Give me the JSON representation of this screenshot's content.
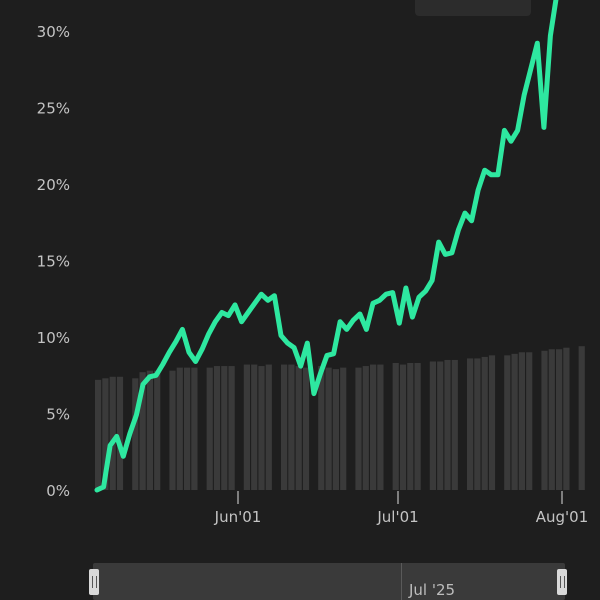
{
  "chart_data": {
    "type": "line",
    "x_ticks": [
      "Jun'01",
      "Jul'01",
      "Aug'01"
    ],
    "y_ticks": [
      "0%",
      "5%",
      "10%",
      "15%",
      "20%",
      "25%",
      "30%"
    ],
    "ylim": [
      0,
      30
    ],
    "series": [
      {
        "values": [
          0,
          0.2,
          2.9,
          3.5,
          2.2,
          3.7,
          4.9,
          6.9,
          7.4,
          7.5,
          8.2,
          9.0,
          9.7,
          10.5,
          9.0,
          8.4,
          9.2,
          10.2,
          11.0,
          11.6,
          11.4,
          12.1,
          11.0,
          11.6,
          12.2,
          12.8,
          12.4,
          12.7,
          10.1,
          9.6,
          9.3,
          8.1,
          9.6,
          6.3,
          7.6,
          8.8,
          8.9,
          11.0,
          10.5,
          11.1,
          11.5,
          10.5,
          12.2,
          12.4,
          12.8,
          12.9,
          10.9,
          13.2,
          11.3,
          12.6,
          13.0,
          13.7,
          16.2,
          15.4,
          15.5,
          17.0,
          18.1,
          17.6,
          19.6,
          20.9,
          20.6,
          20.6,
          23.5,
          22.8,
          23.5,
          25.8,
          27.5,
          29.2,
          23.7,
          29.7,
          32.5
        ],
        "color": "#2ee8a0"
      }
    ],
    "volume_bars": [
      7.2,
      7.3,
      7.4,
      7.4,
      7.3,
      7.7,
      7.8,
      7.8,
      7.8,
      8.0,
      8.0,
      8.0,
      8.0,
      8.1,
      8.1,
      8.1,
      8.2,
      8.2,
      8.1,
      8.2,
      8.2,
      8.2,
      8.1,
      8.0,
      8.1,
      8.0,
      7.9,
      8.0,
      8.0,
      8.1,
      8.2,
      8.2,
      8.3,
      8.2,
      8.3,
      8.3,
      8.4,
      8.4,
      8.5,
      8.5,
      8.6,
      8.6,
      8.7,
      8.8,
      8.8,
      8.9,
      9.0,
      9.0,
      9.1,
      9.2,
      9.2,
      9.3,
      9.4
    ],
    "grid": false,
    "background": "#1e1e1e",
    "axis_color": "#9e9e9e"
  },
  "navigator": {
    "label": "Jul '25"
  }
}
